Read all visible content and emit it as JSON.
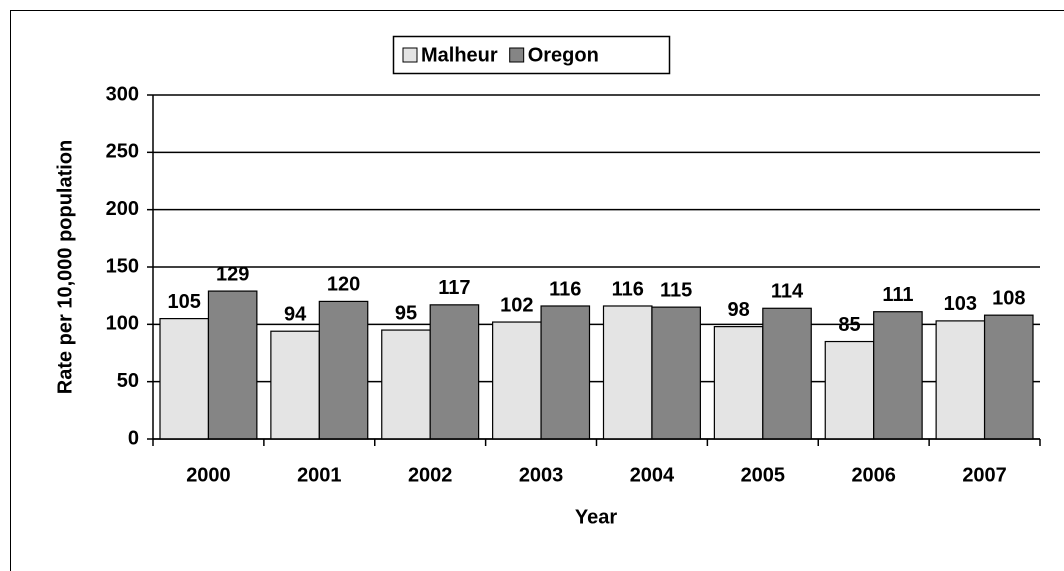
{
  "chart_data": {
    "type": "bar",
    "x_label": "Year",
    "y_label": "Rate per 10,000 population",
    "categories": [
      "2000",
      "2001",
      "2002",
      "2003",
      "2004",
      "2005",
      "2006",
      "2007"
    ],
    "series": [
      {
        "name": "Malheur",
        "color": "#e4e4e4",
        "values": [
          105,
          94,
          95,
          102,
          116,
          98,
          85,
          103
        ]
      },
      {
        "name": "Oregon",
        "color": "#858585",
        "values": [
          129,
          120,
          117,
          116,
          115,
          114,
          111,
          108
        ]
      }
    ],
    "ylim": [
      0,
      300
    ],
    "yticks": [
      0,
      50,
      100,
      150,
      200,
      250,
      300
    ],
    "grid": true,
    "legend": "top"
  }
}
